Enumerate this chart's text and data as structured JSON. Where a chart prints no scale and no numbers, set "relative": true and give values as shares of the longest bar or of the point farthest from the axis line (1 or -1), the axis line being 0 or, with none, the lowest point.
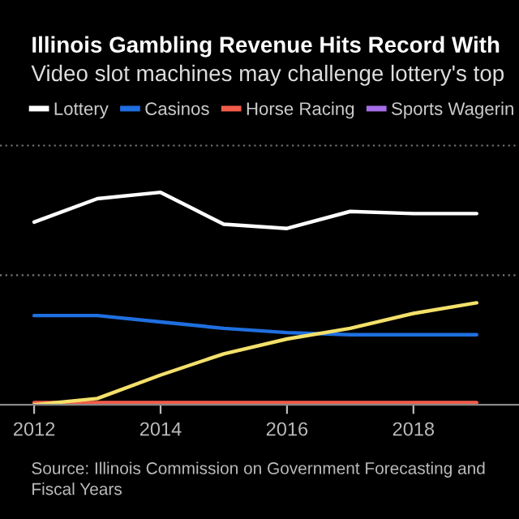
{
  "chart_data": {
    "type": "line",
    "title": "Illinois Gambling Revenue Hits Record With",
    "subtitle": "Video slot machines may challenge lottery's top",
    "annotations": [
      "Source: Illinois Commission on Government Forecasting and",
      "Fiscal Years"
    ],
    "x": [
      2012,
      2013,
      2014,
      2015,
      2016,
      2017,
      2018,
      2019
    ],
    "xlim": [
      2011.46,
      2019.67
    ],
    "xticks": [
      2012,
      2014,
      2016,
      2018
    ],
    "relative": true,
    "legend": "top left",
    "ref_lines": [
      {
        "axis": "y",
        "value": 0.61,
        "color": "#777777",
        "line_style": "dotted"
      },
      {
        "axis": "y",
        "value": 1.22,
        "color": "#777777",
        "line_style": "dotted"
      }
    ],
    "series": [
      {
        "name": "Lottery",
        "color": "#ffffff",
        "values": [
          0.86,
          0.97,
          1,
          0.85,
          0.83,
          0.91,
          0.9,
          0.9
        ]
      },
      {
        "name": "Casinos",
        "color": "#1f6fe0",
        "values": [
          0.42,
          0.42,
          0.39,
          0.36,
          0.34,
          0.33,
          0.33,
          0.33
        ]
      },
      {
        "name": "Horse Racing",
        "color": "#f25c4a",
        "values": [
          0.01,
          0.01,
          0.01,
          0.01,
          0.01,
          0.01,
          0.01,
          0.01
        ]
      },
      {
        "name": "Sports Wagerin",
        "color": "#a66ee8",
        "values": [
          null,
          null,
          null,
          null,
          null,
          null,
          null,
          null
        ]
      },
      {
        "color": "#f3e06a",
        "values": [
          0,
          0.03,
          0.14,
          0.24,
          0.31,
          0.36,
          0.43,
          0.48
        ]
      }
    ]
  }
}
